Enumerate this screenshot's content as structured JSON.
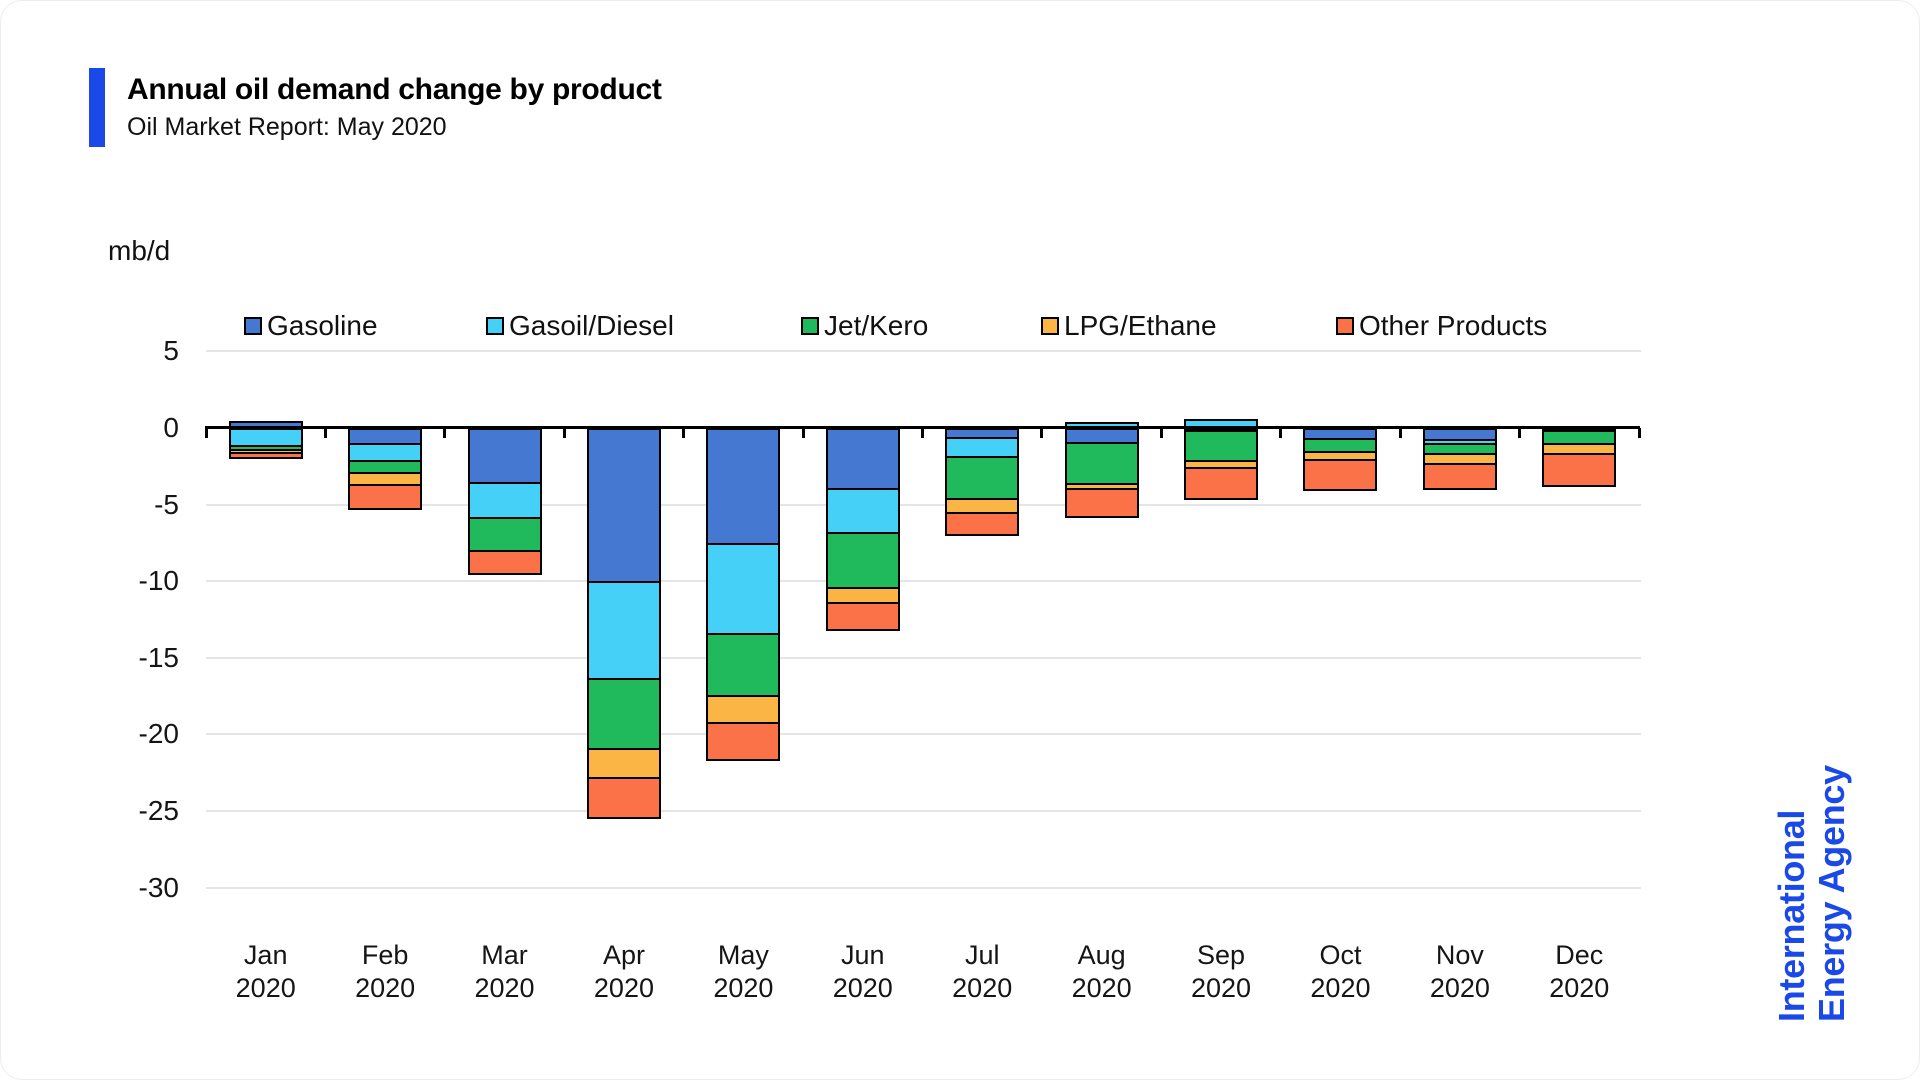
{
  "header": {
    "title": "Annual oil demand change by product",
    "subtitle": "Oil Market Report: May 2020"
  },
  "branding": {
    "line1": "International",
    "line2": "Energy Agency",
    "color": "#1b49e8"
  },
  "chart_data": {
    "type": "bar",
    "stacked": true,
    "title": "Annual oil demand change by product",
    "unit_label": "mb/d",
    "legend_position": "top",
    "grid": true,
    "ylim": [
      -30,
      5
    ],
    "yticks": [
      5,
      0,
      -5,
      -10,
      -15,
      -20,
      -25,
      -30
    ],
    "categories": [
      "Jan",
      "Feb",
      "Mar",
      "Apr",
      "May",
      "Jun",
      "Jul",
      "Aug",
      "Sep",
      "Oct",
      "Nov",
      "Dec"
    ],
    "category_year": "2020",
    "series": [
      {
        "name": "Gasoline",
        "color": "#4478d1",
        "values": [
          0.3,
          -1.0,
          -3.5,
          -10.0,
          -7.5,
          -3.9,
          -0.6,
          -0.9,
          -0.1,
          -0.65,
          -0.7,
          -0.1
        ]
      },
      {
        "name": "Gasoil/Diesel",
        "color": "#45d0f8",
        "values": [
          -1.1,
          -1.1,
          -2.3,
          -6.3,
          -5.9,
          -2.9,
          -1.2,
          0.25,
          0.45,
          0,
          -0.3,
          0
        ]
      },
      {
        "name": "Jet/Kero",
        "color": "#20ba5d",
        "values": [
          -0.25,
          -0.8,
          -2.15,
          -4.6,
          -4.0,
          -3.55,
          -2.8,
          -2.7,
          -2.0,
          -0.85,
          -0.65,
          -0.9
        ]
      },
      {
        "name": "LPG/Ethane",
        "color": "#fbb545",
        "values": [
          -0.2,
          -0.75,
          0,
          -1.9,
          -1.8,
          -1.0,
          -0.9,
          -0.3,
          -0.45,
          -0.5,
          -0.65,
          -0.65
        ]
      },
      {
        "name": "Other Products",
        "color": "#fb7249",
        "values": [
          -0.35,
          -1.6,
          -1.5,
          -2.6,
          -2.4,
          -1.75,
          -1.4,
          -1.85,
          -2.05,
          -2.0,
          -1.6,
          -2.05
        ]
      }
    ]
  }
}
